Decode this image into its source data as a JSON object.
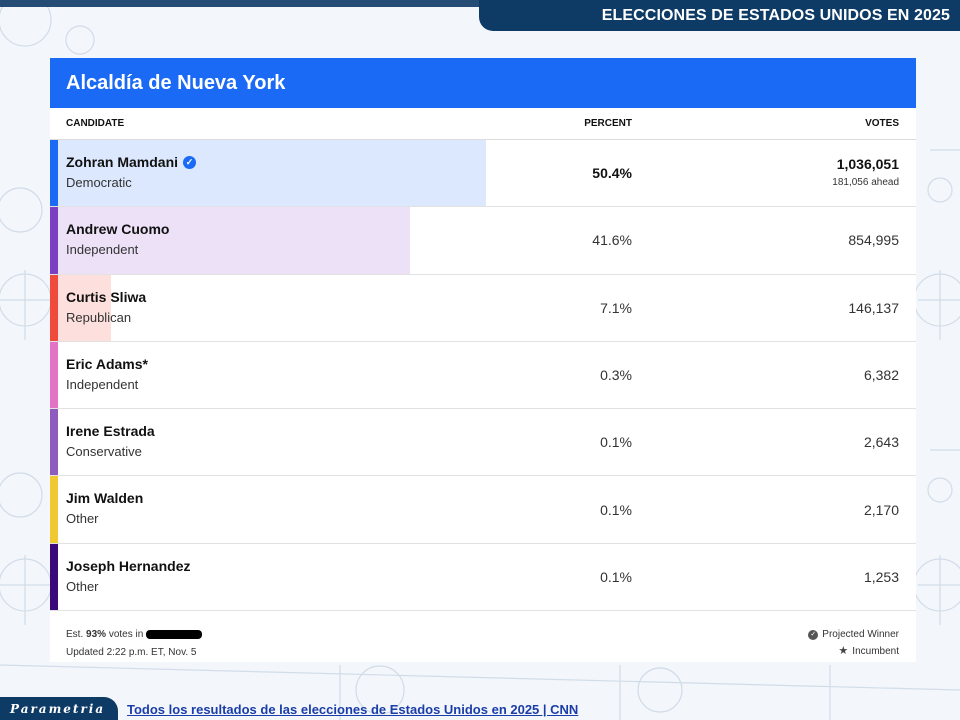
{
  "header": {
    "title": "ELECCIONES DE ESTADOS UNIDOS EN 2025"
  },
  "card": {
    "title": "Alcaldía de Nueva York",
    "columns": {
      "candidate": "CANDIDATE",
      "percent": "PERCENT",
      "votes": "VOTES"
    },
    "rows": [
      {
        "name": "Zohran Mamdani",
        "party": "Democratic",
        "percent": "50.4%",
        "votes": "1,036,051",
        "ahead": "181,056 ahead",
        "share": 50.4,
        "color": "#1a6af5",
        "fill": "#dce8fd",
        "winner": true
      },
      {
        "name": "Andrew Cuomo",
        "party": "Independent",
        "percent": "41.6%",
        "votes": "854,995",
        "share": 41.6,
        "color": "#7b3fc4",
        "fill": "#ece1f7"
      },
      {
        "name": "Curtis Sliwa",
        "party": "Republican",
        "percent": "7.1%",
        "votes": "146,137",
        "share": 7.1,
        "color": "#ef4a3c",
        "fill": "#fde0dd"
      },
      {
        "name": "Eric Adams*",
        "party": "Independent",
        "percent": "0.3%",
        "votes": "6,382",
        "share": 0.3,
        "color": "#e274c4",
        "fill": "#fbe2f3"
      },
      {
        "name": "Irene Estrada",
        "party": "Conservative",
        "percent": "0.1%",
        "votes": "2,643",
        "share": 0.1,
        "color": "#8e5bbf",
        "fill": "#eee5f7"
      },
      {
        "name": "Jim Walden",
        "party": "Other",
        "percent": "0.1%",
        "votes": "2,170",
        "share": 0.1,
        "color": "#f0c832",
        "fill": "#fcf3cf"
      },
      {
        "name": "Joseph Hernandez",
        "party": "Other",
        "percent": "0.1%",
        "votes": "1,253",
        "share": 0.1,
        "color": "#3a0a7a",
        "fill": "#e3dcef"
      }
    ],
    "footer": {
      "est_prefix": "Est.",
      "est_pct": "93%",
      "est_suffix": "votes in",
      "updated": "Updated 2:22 p.m. ET, Nov. 5",
      "projected_winner": "Projected Winner",
      "incumbent": "Incumbent"
    }
  },
  "bottom": {
    "logo": "Parametria",
    "link": "Todos los resultados de las elecciones de Estados Unidos en 2025 | CNN"
  }
}
